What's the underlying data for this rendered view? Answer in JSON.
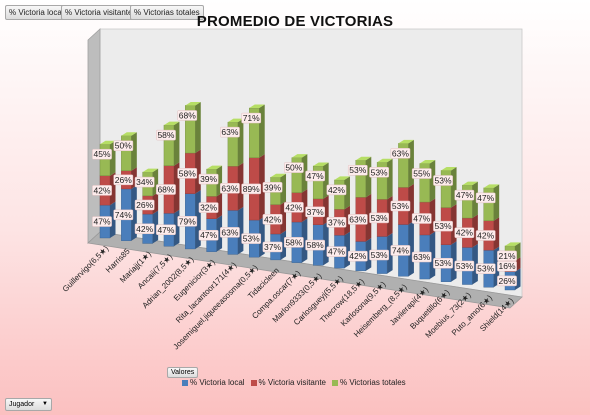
{
  "filters": {
    "local": "% Victoria local",
    "visitante": "% Victoria visitante",
    "totales": "% Victorias totales"
  },
  "values_button": "Valores",
  "axis_field_button": "Jugador",
  "colors": {
    "local": "#4a7ebb",
    "visitante": "#be4b48",
    "totales": "#98b954"
  },
  "chart_data": {
    "type": "bar",
    "stacked": true,
    "three_d": true,
    "title": "PROMEDIO DE VICTORIAS",
    "legend_position": "bottom",
    "categories": [
      "Guillervigo(6,5★)",
      "Harris85",
      "Mariajj(1★)",
      "Ancaii(7,5★)",
      "Adrian_2002(8,5★)",
      "Eugenicior(3★)",
      "Rita_lacantoor171(4★)",
      "Josemiguel.jiqueeasosma(0,5★)",
      "Tidacicleen",
      "Compa.oscar(7★)",
      "Marlon9333(0,5★)",
      "Carlosgueyj(5,5★)",
      "Thecrow(18,5★)",
      "Karlosona(9,5★)",
      "Heisemberg_(8,5★)",
      "Javiierapi(4★)",
      "Buquetillo(6★)",
      "Moebius_73(2★)",
      "Puto_amo(6★)",
      "Shield(14★)"
    ],
    "series": [
      {
        "name": "% Victoria local",
        "values": [
          47,
          74,
          42,
          47,
          79,
          47,
          63,
          53,
          37,
          58,
          58,
          47,
          42,
          53,
          74,
          63,
          53,
          53,
          53,
          26
        ]
      },
      {
        "name": "% Victoria visitante",
        "values": [
          42,
          26,
          26,
          68,
          58,
          32,
          63,
          89,
          42,
          42,
          37,
          37,
          63,
          53,
          53,
          47,
          53,
          42,
          42,
          16
        ]
      },
      {
        "name": "% Victorias totales",
        "values": [
          45,
          50,
          34,
          58,
          68,
          39,
          63,
          71,
          39,
          50,
          47,
          42,
          53,
          53,
          63,
          55,
          53,
          47,
          47,
          21
        ]
      }
    ]
  }
}
